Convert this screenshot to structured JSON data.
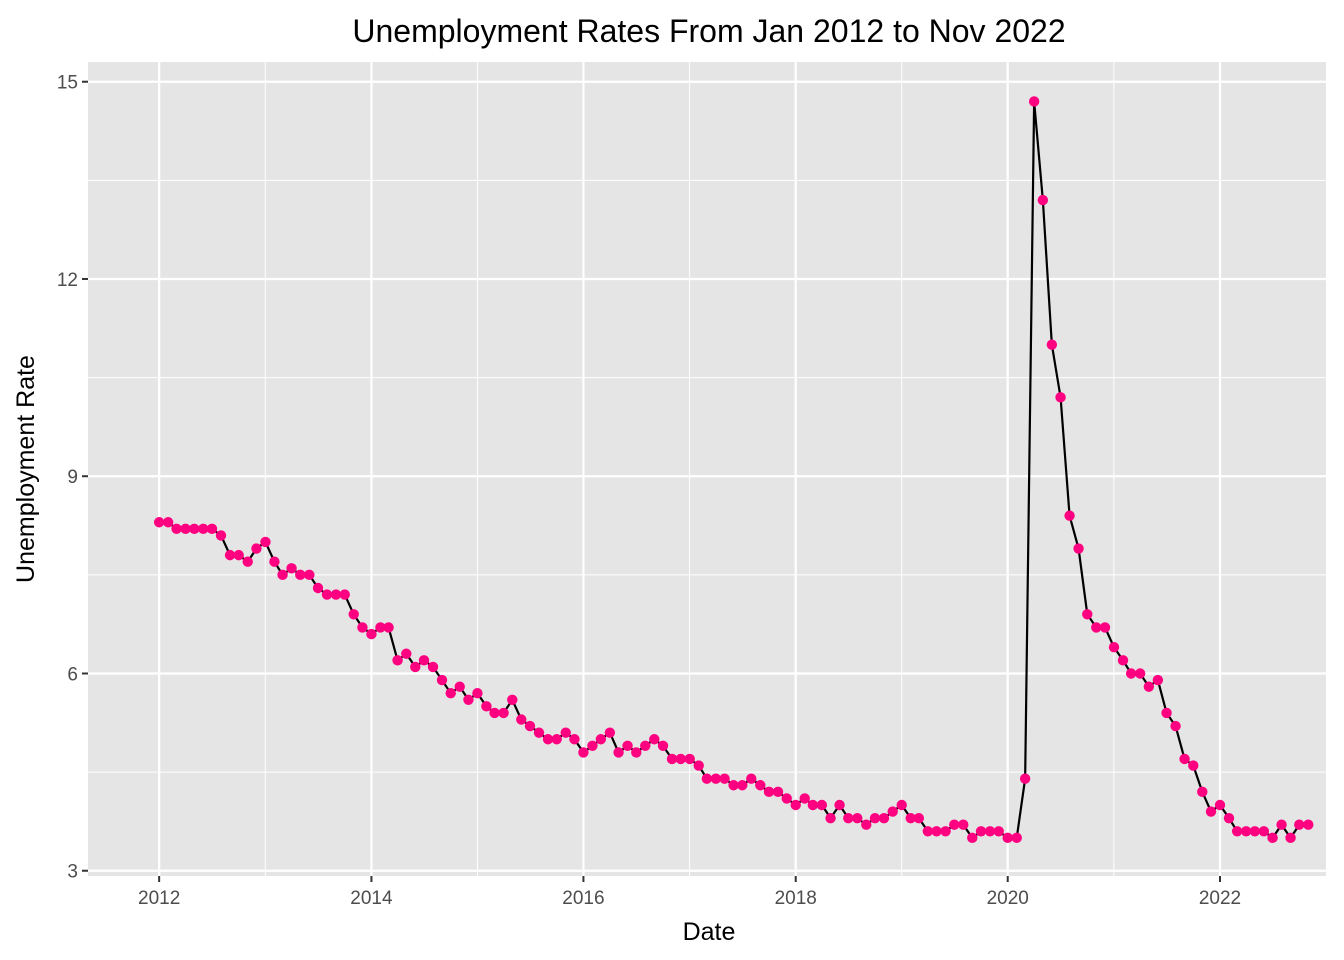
{
  "chart_data": {
    "type": "line",
    "title": "Unemployment Rates From Jan 2012 to Nov 2022",
    "xlabel": "Date",
    "ylabel": "Unemployment Rate",
    "xlim": [
      "2011-05-01",
      "2023-01-01"
    ],
    "ylim": [
      2.92,
      15.3
    ],
    "x_ticks": [
      "2012",
      "2014",
      "2016",
      "2018",
      "2020",
      "2022"
    ],
    "y_ticks": [
      3,
      6,
      9,
      12,
      15
    ],
    "grid": true,
    "background": "#e5e5e5",
    "line_color": "#000000",
    "point_color": "#ff0080",
    "series": [
      {
        "x": [
          "2012-01",
          "2012-02",
          "2012-03",
          "2012-04",
          "2012-05",
          "2012-06",
          "2012-07",
          "2012-08",
          "2012-09",
          "2012-10",
          "2012-11",
          "2012-12",
          "2013-01",
          "2013-02",
          "2013-03",
          "2013-04",
          "2013-05",
          "2013-06",
          "2013-07",
          "2013-08",
          "2013-09",
          "2013-10",
          "2013-11",
          "2013-12",
          "2014-01",
          "2014-02",
          "2014-03",
          "2014-04",
          "2014-05",
          "2014-06",
          "2014-07",
          "2014-08",
          "2014-09",
          "2014-10",
          "2014-11",
          "2014-12",
          "2015-01",
          "2015-02",
          "2015-03",
          "2015-04",
          "2015-05",
          "2015-06",
          "2015-07",
          "2015-08",
          "2015-09",
          "2015-10",
          "2015-11",
          "2015-12",
          "2016-01",
          "2016-02",
          "2016-03",
          "2016-04",
          "2016-05",
          "2016-06",
          "2016-07",
          "2016-08",
          "2016-09",
          "2016-10",
          "2016-11",
          "2016-12",
          "2017-01",
          "2017-02",
          "2017-03",
          "2017-04",
          "2017-05",
          "2017-06",
          "2017-07",
          "2017-08",
          "2017-09",
          "2017-10",
          "2017-11",
          "2017-12",
          "2018-01",
          "2018-02",
          "2018-03",
          "2018-04",
          "2018-05",
          "2018-06",
          "2018-07",
          "2018-08",
          "2018-09",
          "2018-10",
          "2018-11",
          "2018-12",
          "2019-01",
          "2019-02",
          "2019-03",
          "2019-04",
          "2019-05",
          "2019-06",
          "2019-07",
          "2019-08",
          "2019-09",
          "2019-10",
          "2019-11",
          "2019-12",
          "2020-01",
          "2020-02",
          "2020-03",
          "2020-04",
          "2020-05",
          "2020-06",
          "2020-07",
          "2020-08",
          "2020-09",
          "2020-10",
          "2020-11",
          "2020-12",
          "2021-01",
          "2021-02",
          "2021-03",
          "2021-04",
          "2021-05",
          "2021-06",
          "2021-07",
          "2021-08",
          "2021-09",
          "2021-10",
          "2021-11",
          "2021-12",
          "2022-01",
          "2022-02",
          "2022-03",
          "2022-04",
          "2022-05",
          "2022-06",
          "2022-07",
          "2022-08",
          "2022-09",
          "2022-10",
          "2022-11"
        ],
        "y": [
          8.3,
          8.3,
          8.2,
          8.2,
          8.2,
          8.2,
          8.2,
          8.1,
          7.8,
          7.8,
          7.7,
          7.9,
          8.0,
          7.7,
          7.5,
          7.6,
          7.5,
          7.5,
          7.3,
          7.2,
          7.2,
          7.2,
          6.9,
          6.7,
          6.6,
          6.7,
          6.7,
          6.2,
          6.3,
          6.1,
          6.2,
          6.1,
          5.9,
          5.7,
          5.8,
          5.6,
          5.7,
          5.5,
          5.4,
          5.4,
          5.6,
          5.3,
          5.2,
          5.1,
          5.0,
          5.0,
          5.1,
          5.0,
          4.8,
          4.9,
          5.0,
          5.1,
          4.8,
          4.9,
          4.8,
          4.9,
          5.0,
          4.9,
          4.7,
          4.7,
          4.7,
          4.6,
          4.4,
          4.4,
          4.4,
          4.3,
          4.3,
          4.4,
          4.3,
          4.2,
          4.2,
          4.1,
          4.0,
          4.1,
          4.0,
          4.0,
          3.8,
          4.0,
          3.8,
          3.8,
          3.7,
          3.8,
          3.8,
          3.9,
          4.0,
          3.8,
          3.8,
          3.6,
          3.6,
          3.6,
          3.7,
          3.7,
          3.5,
          3.6,
          3.6,
          3.6,
          3.5,
          3.5,
          4.4,
          14.7,
          13.2,
          11.0,
          10.2,
          8.4,
          7.9,
          6.9,
          6.7,
          6.7,
          6.4,
          6.2,
          6.0,
          6.0,
          5.8,
          5.9,
          5.4,
          5.2,
          4.7,
          4.6,
          4.2,
          3.9,
          4.0,
          3.8,
          3.6,
          3.6,
          3.6,
          3.6,
          3.5,
          3.7,
          3.5,
          3.7,
          3.7
        ]
      }
    ]
  }
}
